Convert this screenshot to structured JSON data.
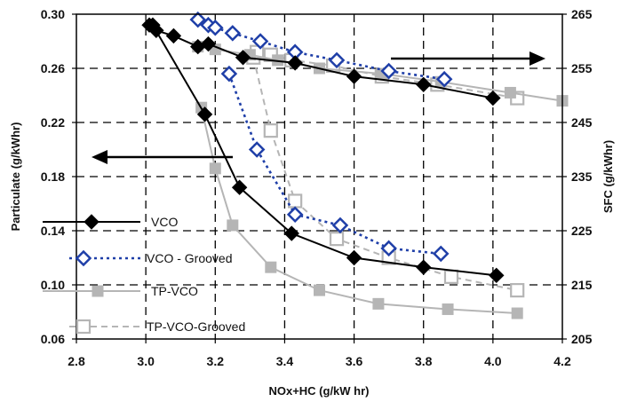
{
  "chart_data": {
    "type": "scatter",
    "xlabel": "NOx+HC (g/kW hr)",
    "ylabel_left": "Particulate (g/kWhr)",
    "ylabel_right": "SFC (g/kWhr)",
    "xlim": [
      2.8,
      4.2
    ],
    "ylim_left": [
      0.06,
      0.3
    ],
    "ylim_right": [
      205,
      265
    ],
    "x_ticks": [
      "2.8",
      "3.0",
      "3.2",
      "3.4",
      "3.6",
      "3.8",
      "4.0",
      "4.2"
    ],
    "y_left_ticks": [
      "0.06",
      "0.10",
      "0.14",
      "0.18",
      "0.22",
      "0.26",
      "0.30"
    ],
    "y_right_ticks": [
      "205",
      "215",
      "225",
      "235",
      "245",
      "255",
      "265"
    ],
    "grid": true,
    "legend_placement": "left",
    "series": [
      {
        "name": "VCO",
        "color": "#000000",
        "marker": "diamond-filled",
        "line": "solid",
        "particulate": {
          "x": [
            3.02,
            3.17,
            3.27,
            3.42,
            3.6,
            3.8,
            4.01
          ],
          "y": [
            0.292,
            0.226,
            0.172,
            0.138,
            0.12,
            0.113,
            0.107
          ]
        },
        "sfc": {
          "x": [
            3.01,
            3.03,
            3.08,
            3.15,
            3.18,
            3.28,
            3.43,
            3.6,
            3.8,
            4.0
          ],
          "y": [
            263,
            262,
            261,
            259,
            259.5,
            257,
            256,
            253.5,
            252,
            249.5
          ]
        }
      },
      {
        "name": "VCO - Grooved",
        "color": "#1f3fa8",
        "marker": "diamond-open",
        "line": "dotted",
        "particulate": {
          "x": [
            3.24,
            3.32,
            3.43,
            3.56,
            3.7,
            3.85
          ],
          "y": [
            0.256,
            0.2,
            0.152,
            0.144,
            0.127,
            0.123
          ]
        },
        "sfc": {
          "x": [
            3.15,
            3.18,
            3.2,
            3.25,
            3.33,
            3.43,
            3.55,
            3.7,
            3.86
          ],
          "y": [
            264,
            263,
            262.5,
            261.5,
            260,
            258,
            256.5,
            254.5,
            253
          ]
        }
      },
      {
        "name": "TP-VCO",
        "color": "#b5b5b5",
        "marker": "square-filled",
        "line": "solid",
        "particulate": {
          "x": [
            3.16,
            3.2,
            3.25,
            3.36,
            3.5,
            3.67,
            3.87,
            4.07
          ],
          "y": [
            0.231,
            0.186,
            0.144,
            0.113,
            0.096,
            0.086,
            0.082,
            0.079
          ]
        },
        "sfc": {
          "x": [
            3.15,
            3.2,
            3.3,
            3.38,
            3.5,
            3.68,
            3.85,
            4.05,
            4.2
          ],
          "y": [
            259,
            258.5,
            257.5,
            256.5,
            255,
            254,
            252.5,
            250.5,
            249
          ]
        }
      },
      {
        "name": "TP-VCO-Grooved",
        "color": "#b5b5b5",
        "marker": "square-open",
        "line": "dashed",
        "particulate": {
          "x": [
            3.31,
            3.36,
            3.43,
            3.55,
            3.7,
            3.88,
            4.07
          ],
          "y": [
            0.268,
            0.214,
            0.162,
            0.134,
            0.12,
            0.106,
            0.096
          ]
        },
        "sfc": {
          "x": [
            3.32,
            3.36,
            3.42,
            3.54,
            3.68,
            3.84,
            4.07
          ],
          "y": [
            258,
            257.5,
            256.5,
            255.5,
            253.5,
            252,
            249.5
          ]
        }
      }
    ],
    "annotations": [
      {
        "kind": "arrow",
        "direction": "right",
        "meaning": "SFC curves use right axis"
      },
      {
        "kind": "arrow",
        "direction": "left",
        "meaning": "Particulate curves use left axis"
      }
    ]
  }
}
